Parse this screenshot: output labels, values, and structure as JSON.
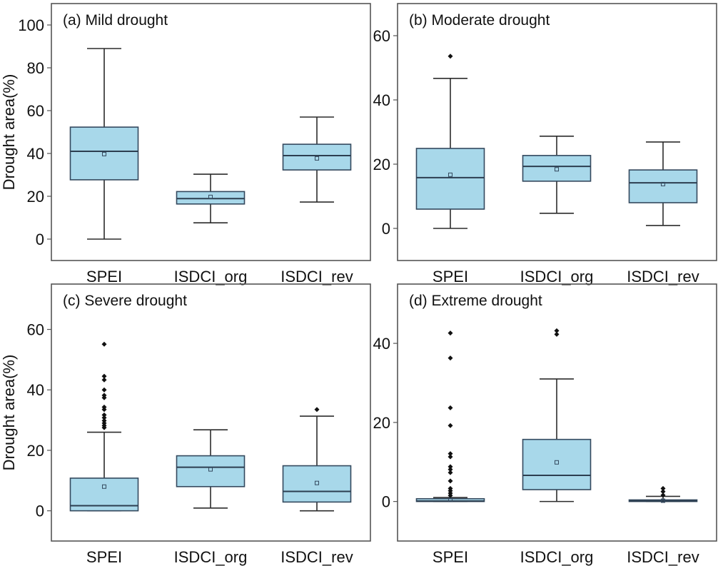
{
  "chart_data": [
    {
      "type": "box",
      "title": "(a) Mild drought",
      "ylabel": "Drought area(%)",
      "xlabel": "",
      "ylim": [
        -10,
        110
      ],
      "yticks": [
        0,
        20,
        40,
        60,
        80,
        100
      ],
      "categories": [
        "SPEI",
        "ISDCI_org",
        "ISDCI_rev"
      ],
      "boxes": [
        {
          "name": "SPEI",
          "whisker_low": 0,
          "q1": 27.7,
          "median": 41,
          "mean": 39.7,
          "q3": 52.3,
          "whisker_high": 89,
          "outliers": []
        },
        {
          "name": "ISDCI_org",
          "whisker_low": 7.6,
          "q1": 16.4,
          "median": 18.9,
          "mean": 19.7,
          "q3": 22.2,
          "whisker_high": 30.3,
          "outliers": []
        },
        {
          "name": "ISDCI_rev",
          "whisker_low": 17.3,
          "q1": 32.3,
          "median": 39,
          "mean": 37.7,
          "q3": 44.3,
          "whisker_high": 57,
          "outliers": []
        }
      ]
    },
    {
      "type": "box",
      "title": "(b) Moderate drought",
      "ylabel": "",
      "xlabel": "",
      "ylim": [
        -10,
        70
      ],
      "yticks": [
        0,
        20,
        40,
        60
      ],
      "categories": [
        "SPEI",
        "ISDCI_org",
        "ISDCI_rev"
      ],
      "boxes": [
        {
          "name": "SPEI",
          "whisker_low": 0,
          "q1": 6,
          "median": 15.8,
          "mean": 16.7,
          "q3": 24.9,
          "whisker_high": 46.7,
          "outliers": [
            53.6
          ]
        },
        {
          "name": "ISDCI_org",
          "whisker_low": 4.7,
          "q1": 14.7,
          "median": 19.3,
          "mean": 18.4,
          "q3": 22.7,
          "whisker_high": 28.7,
          "outliers": []
        },
        {
          "name": "ISDCI_rev",
          "whisker_low": 0.9,
          "q1": 8,
          "median": 14.2,
          "mean": 13.8,
          "q3": 18.2,
          "whisker_high": 26.9,
          "outliers": []
        }
      ]
    },
    {
      "type": "box",
      "title": "(c) Severe drought",
      "ylabel": "Drought area(%)",
      "xlabel": "",
      "ylim": [
        -10,
        75
      ],
      "yticks": [
        0,
        20,
        40,
        60
      ],
      "categories": [
        "SPEI",
        "ISDCI_org",
        "ISDCI_rev"
      ],
      "boxes": [
        {
          "name": "SPEI",
          "whisker_low": 0,
          "q1": 0,
          "median": 1.7,
          "mean": 8,
          "q3": 10.8,
          "whisker_high": 26,
          "outliers": [
            55.1,
            44.5,
            43.3,
            40,
            38.2,
            37.4,
            34.3,
            33.5,
            31.7,
            30.8,
            29.8,
            29,
            28.2,
            27.5
          ]
        },
        {
          "name": "ISDCI_org",
          "whisker_low": 0.9,
          "q1": 8,
          "median": 14.4,
          "mean": 13.7,
          "q3": 18.2,
          "whisker_high": 26.8,
          "outliers": []
        },
        {
          "name": "ISDCI_rev",
          "whisker_low": 0,
          "q1": 2.9,
          "median": 6.4,
          "mean": 9.2,
          "q3": 14.9,
          "whisker_high": 31.3,
          "outliers": [
            33.5
          ]
        }
      ]
    },
    {
      "type": "box",
      "title": "(d) Extreme drought",
      "ylabel": "",
      "xlabel": "",
      "ylim": [
        -10,
        55
      ],
      "yticks": [
        0,
        20,
        40
      ],
      "categories": [
        "SPEI",
        "ISDCI_org",
        "ISDCI_rev"
      ],
      "boxes": [
        {
          "name": "SPEI",
          "whisker_low": 0,
          "q1": 0,
          "median": 0.1,
          "mean": 0.4,
          "q3": 0.7,
          "whisker_high": 1.0,
          "outliers": [
            42.6,
            36.3,
            23.7,
            19.2,
            12.1,
            11.3,
            8.8,
            8.1,
            7.3,
            5.2,
            3.3,
            2.7,
            2.1,
            1.5
          ]
        },
        {
          "name": "ISDCI_org",
          "whisker_low": 0,
          "q1": 3,
          "median": 6.6,
          "mean": 9.9,
          "q3": 15.7,
          "whisker_high": 31,
          "outliers": [
            43.2,
            42.3
          ]
        },
        {
          "name": "ISDCI_rev",
          "whisker_low": 0,
          "q1": 0,
          "median": 0.1,
          "mean": 0.2,
          "q3": 0.4,
          "whisker_high": 1.3,
          "outliers": [
            3.3,
            2.5,
            1.6
          ]
        }
      ]
    }
  ],
  "colors": {
    "box_fill": "#a8d8ea",
    "box_edge": "#34495e",
    "outlier": "#111111"
  }
}
